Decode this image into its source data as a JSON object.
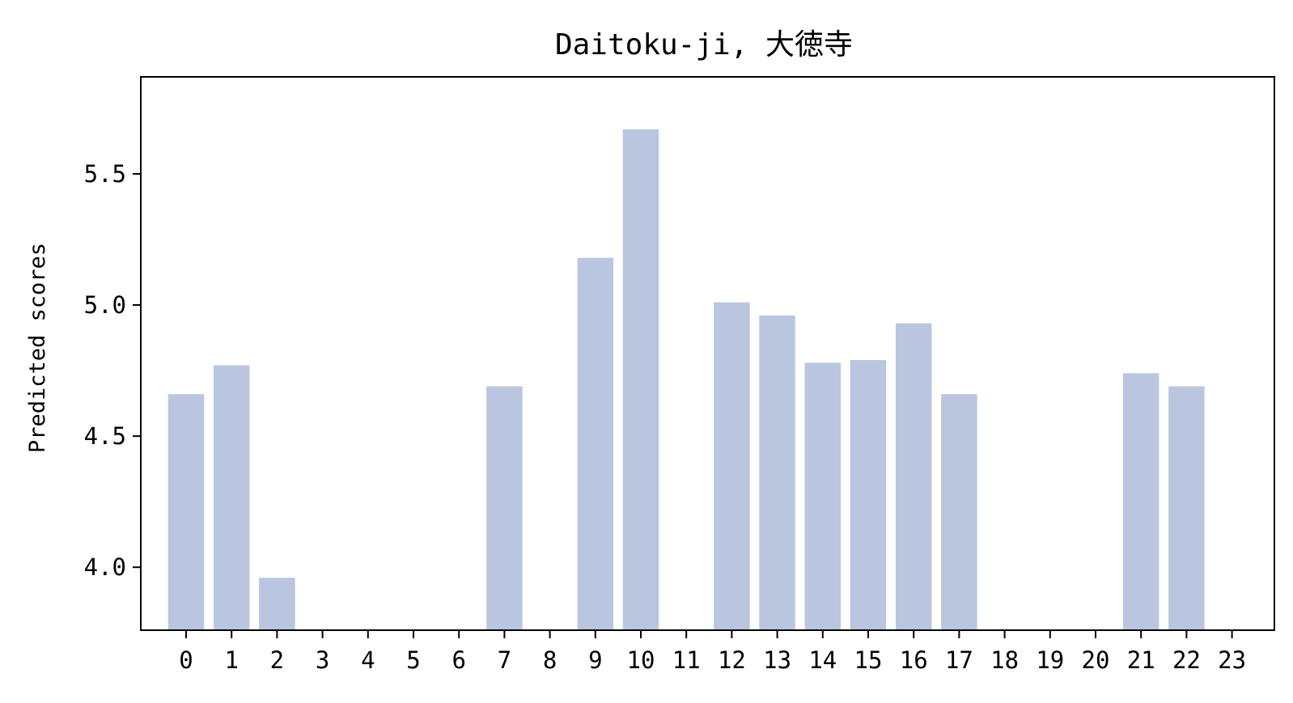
{
  "chart_data": {
    "type": "bar",
    "title": "Daitoku-ji, 大徳寺",
    "xlabel": "",
    "ylabel": "Predicted scores",
    "categories": [
      "0",
      "1",
      "2",
      "3",
      "4",
      "5",
      "6",
      "7",
      "8",
      "9",
      "10",
      "11",
      "12",
      "13",
      "14",
      "15",
      "16",
      "17",
      "18",
      "19",
      "20",
      "21",
      "22",
      "23"
    ],
    "values": [
      4.66,
      4.77,
      3.96,
      null,
      null,
      null,
      null,
      4.69,
      null,
      5.18,
      5.67,
      null,
      5.01,
      4.96,
      4.78,
      4.79,
      4.93,
      4.66,
      null,
      null,
      null,
      4.74,
      4.69,
      null
    ],
    "ylim": [
      3.76,
      5.87
    ],
    "yticks": [
      "4.0",
      "4.5",
      "5.0",
      "5.5"
    ],
    "grid": false,
    "bar_color": "#bac6e0",
    "axis_color": "#000000"
  }
}
